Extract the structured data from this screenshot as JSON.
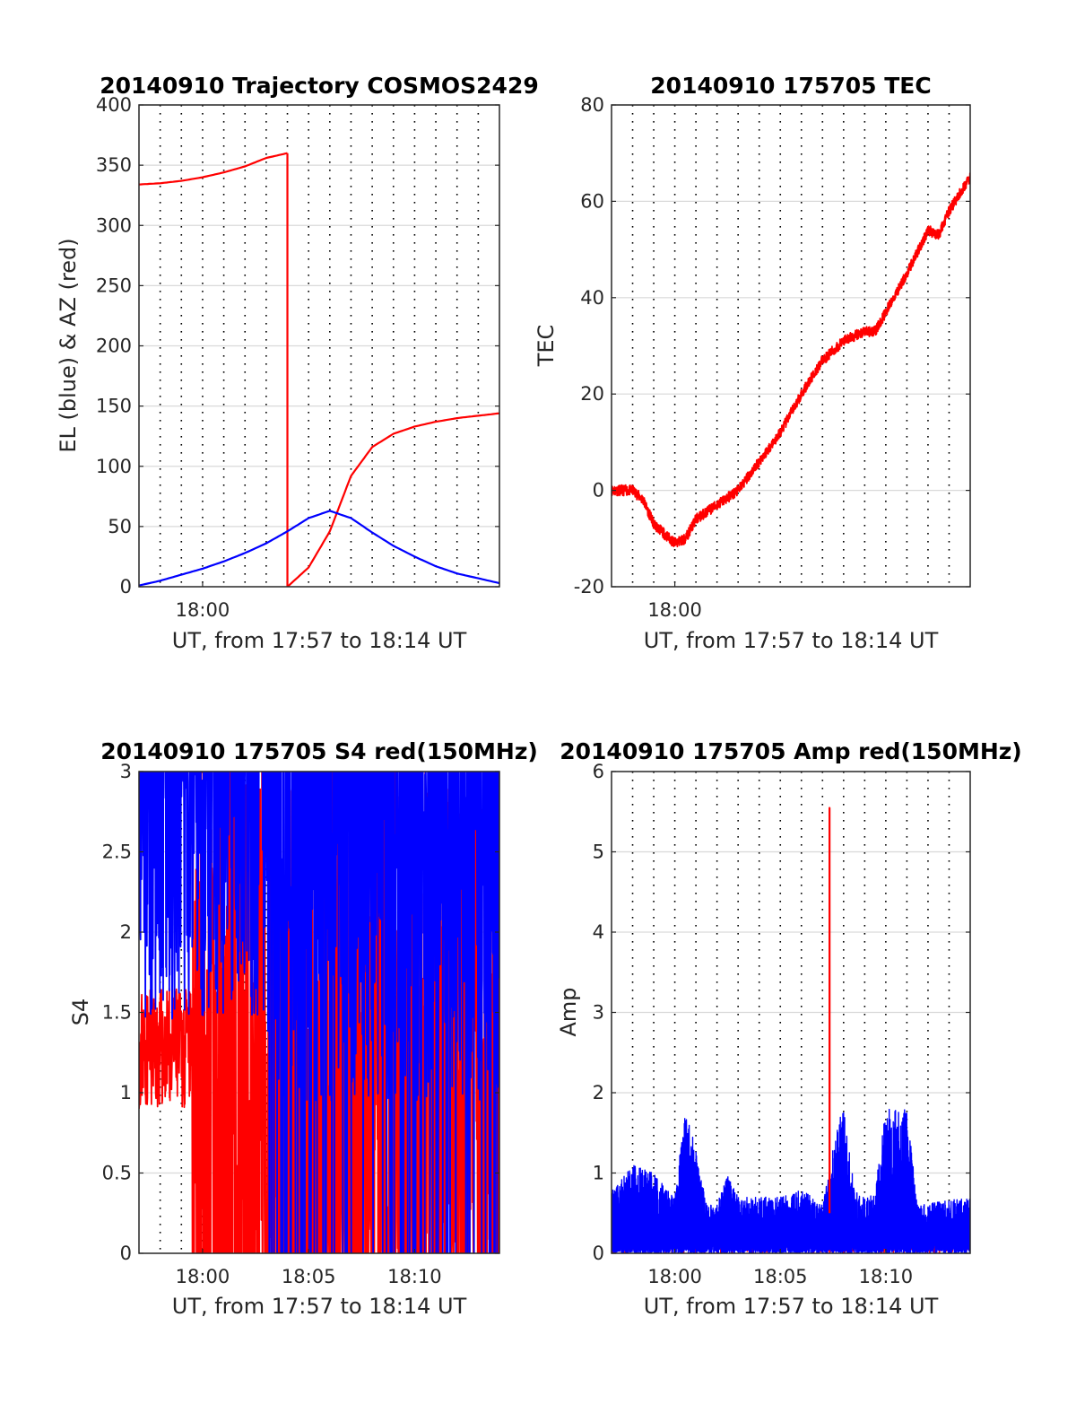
{
  "figure": {
    "background": "#ffffff",
    "colors": {
      "red": "#ff0000",
      "blue": "#0000ff",
      "grid": "#d9d9d9",
      "axis": "#262626"
    }
  },
  "chart_data": [
    {
      "id": "trajectory",
      "type": "line",
      "title": "20140910 Trajectory COSMOS2429",
      "xlabel": "UT, from 17:57 to 18:14 UT",
      "ylabel": "EL (blue) & AZ (red)",
      "xlim": [
        "17:57",
        "18:14"
      ],
      "ylim": [
        0,
        400
      ],
      "yticks": [
        "0",
        "50",
        "100",
        "150",
        "200",
        "250",
        "300",
        "350",
        "400"
      ],
      "xtick_labels": [
        {
          "t": "18:00",
          "label": "18:00"
        }
      ],
      "grid": "dotted vertical lines every 1 min, horizontal gridlines at y ticks",
      "series": [
        {
          "color": "#ff0000",
          "points": [
            [
              "17:57",
              334
            ],
            [
              "17:58",
              335
            ],
            [
              "17:59",
              337
            ],
            [
              "18:00",
              340
            ],
            [
              "18:01",
              344
            ],
            [
              "18:02",
              349
            ],
            [
              "18:03",
              356
            ],
            [
              "18:04",
              360
            ],
            [
              "18:04",
              0
            ],
            [
              "18:05",
              16
            ],
            [
              "18:06",
              46
            ],
            [
              "18:07",
              92
            ],
            [
              "18:08",
              116
            ],
            [
              "18:09",
              127
            ],
            [
              "18:10",
              133
            ],
            [
              "18:11",
              137
            ],
            [
              "18:12",
              140
            ],
            [
              "18:13",
              142
            ],
            [
              "18:14",
              144
            ]
          ]
        },
        {
          "color": "#0000ff",
          "points": [
            [
              "17:57",
              1
            ],
            [
              "17:58",
              5
            ],
            [
              "17:59",
              10
            ],
            [
              "18:00",
              15
            ],
            [
              "18:01",
              21
            ],
            [
              "18:02",
              28
            ],
            [
              "18:03",
              36
            ],
            [
              "18:04",
              46
            ],
            [
              "18:05",
              57
            ],
            [
              "18:06",
              63
            ],
            [
              "18:07",
              57
            ],
            [
              "18:08",
              45
            ],
            [
              "18:09",
              34
            ],
            [
              "18:10",
              25
            ],
            [
              "18:11",
              17
            ],
            [
              "18:12",
              11
            ],
            [
              "18:13",
              7
            ],
            [
              "18:14",
              3
            ]
          ]
        }
      ]
    },
    {
      "id": "tec",
      "type": "line",
      "title": "20140910 175705 TEC",
      "xlabel": "UT, from 17:57 to 18:14 UT",
      "ylabel": "TEC",
      "xlim": [
        "17:57",
        "18:14"
      ],
      "ylim": [
        -20,
        80
      ],
      "yticks": [
        "-20",
        "0",
        "20",
        "40",
        "60",
        "80"
      ],
      "xtick_labels": [
        {
          "t": "18:00",
          "label": "18:00"
        }
      ],
      "series": [
        {
          "color": "#ff0000",
          "points": [
            [
              "17:57",
              0
            ],
            [
              "17:58",
              0
            ],
            [
              "17:58:30",
              -2
            ],
            [
              "17:59",
              -7
            ],
            [
              "18:00",
              -11
            ],
            [
              "18:00:30",
              -10
            ],
            [
              "18:01",
              -6
            ],
            [
              "18:02",
              -3
            ],
            [
              "18:03",
              0
            ],
            [
              "18:04",
              6
            ],
            [
              "18:05",
              12
            ],
            [
              "18:06",
              20
            ],
            [
              "18:07",
              27
            ],
            [
              "18:08",
              31
            ],
            [
              "18:09",
              33
            ],
            [
              "18:09:30",
              33
            ],
            [
              "18:10",
              37
            ],
            [
              "18:11",
              45
            ],
            [
              "18:12",
              54
            ],
            [
              "18:12:30",
              53
            ],
            [
              "18:13",
              58
            ],
            [
              "18:14",
              65
            ]
          ]
        }
      ]
    },
    {
      "id": "s4",
      "type": "line",
      "title": "20140910 175705 S4 red(150MHz)",
      "xlabel": "UT, from 17:57 to 18:14 UT",
      "ylabel": "S4",
      "xlim": [
        "17:57",
        "18:14"
      ],
      "ylim": [
        0,
        3
      ],
      "yticks": [
        "0",
        "0.5",
        "1",
        "1.5",
        "2",
        "2.5",
        "3"
      ],
      "xtick_labels": [
        {
          "t": "18:00",
          "label": "18:00"
        },
        {
          "t": "18:05",
          "label": "18:05"
        },
        {
          "t": "18:10",
          "label": "18:10"
        }
      ],
      "series": [
        {
          "color": "#ff0000",
          "description_values": "noisy 0.9-1.6 before 17:59:30, then rapid 0-3 oscillation"
        },
        {
          "color": "#0000ff",
          "description_values": "noisy 1.5-3 throughout with dropouts to 0 after 18:03"
        }
      ]
    },
    {
      "id": "amp",
      "type": "line",
      "title": "20140910 175705 Amp red(150MHz)",
      "xlabel": "UT, from 17:57 to 18:14 UT",
      "ylabel": "Amp",
      "xlim": [
        "17:57",
        "18:14"
      ],
      "ylim": [
        0,
        6
      ],
      "yticks": [
        "0",
        "1",
        "2",
        "3",
        "4",
        "5",
        "6"
      ],
      "xtick_labels": [
        {
          "t": "18:00",
          "label": "18:00"
        },
        {
          "t": "18:05",
          "label": "18:05"
        },
        {
          "t": "18:10",
          "label": "18:10"
        }
      ],
      "series": [
        {
          "color": "#ff0000",
          "spike": [
            "18:07:20",
            5.55
          ]
        },
        {
          "color": "#0000ff",
          "envelope": [
            [
              "17:57",
              0.8
            ],
            [
              "17:58",
              1.1
            ],
            [
              "17:59",
              1.0
            ],
            [
              "18:00",
              0.7
            ],
            [
              "18:00:30",
              1.8
            ],
            [
              "18:01",
              1.3
            ],
            [
              "18:01:30",
              0.6
            ],
            [
              "18:02",
              0.6
            ],
            [
              "18:02:30",
              1.0
            ],
            [
              "18:03",
              0.7
            ],
            [
              "18:05",
              0.7
            ],
            [
              "18:06",
              0.8
            ],
            [
              "18:07",
              0.6
            ],
            [
              "18:07:30",
              1.3
            ],
            [
              "18:08",
              1.9
            ],
            [
              "18:08:30",
              0.8
            ],
            [
              "18:09",
              0.7
            ],
            [
              "18:09:30",
              0.8
            ],
            [
              "18:10",
              1.8
            ],
            [
              "18:11",
              1.8
            ],
            [
              "18:11:30",
              0.6
            ],
            [
              "18:14",
              0.7
            ]
          ]
        }
      ]
    }
  ]
}
